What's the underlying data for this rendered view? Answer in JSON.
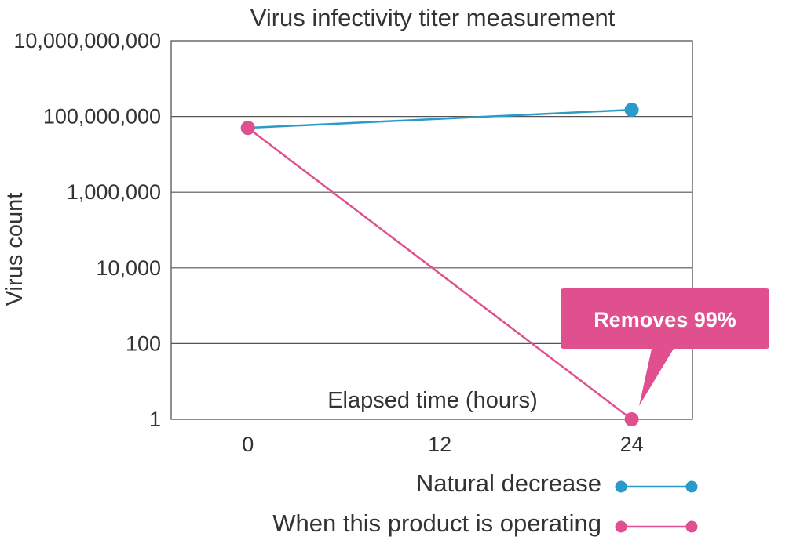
{
  "chart_data": {
    "type": "line",
    "title": "Virus infectivity titer measurement",
    "xlabel": "Elapsed time (hours)",
    "ylabel": "Virus count",
    "y_scale": "log",
    "ylim": [
      1,
      10000000000
    ],
    "y_ticks": [
      {
        "value": 1,
        "label": "1"
      },
      {
        "value": 100,
        "label": "100"
      },
      {
        "value": 10000,
        "label": "10,000"
      },
      {
        "value": 1000000,
        "label": "1,000,000"
      },
      {
        "value": 100000000,
        "label": "100,000,000"
      },
      {
        "value": 10000000000,
        "label": "10,000,000,000"
      }
    ],
    "x_ticks": [
      {
        "value": 0,
        "label": "0"
      },
      {
        "value": 12,
        "label": "12"
      },
      {
        "value": 24,
        "label": "24"
      }
    ],
    "xlim": [
      -4.8,
      27.8
    ],
    "grid": true,
    "legend_position": "bottom-right",
    "series": [
      {
        "name": "Natural decrease",
        "color": "#2a9bc9",
        "x": [
          0,
          24
        ],
        "y": [
          50000000,
          150000000
        ]
      },
      {
        "name": "When this product is operating",
        "color": "#e0508f",
        "x": [
          0,
          24
        ],
        "y": [
          50000000,
          1
        ]
      }
    ],
    "annotations": [
      {
        "text": "Removes 99%",
        "x": 24,
        "y": 1,
        "color": "#e0508f"
      }
    ]
  }
}
